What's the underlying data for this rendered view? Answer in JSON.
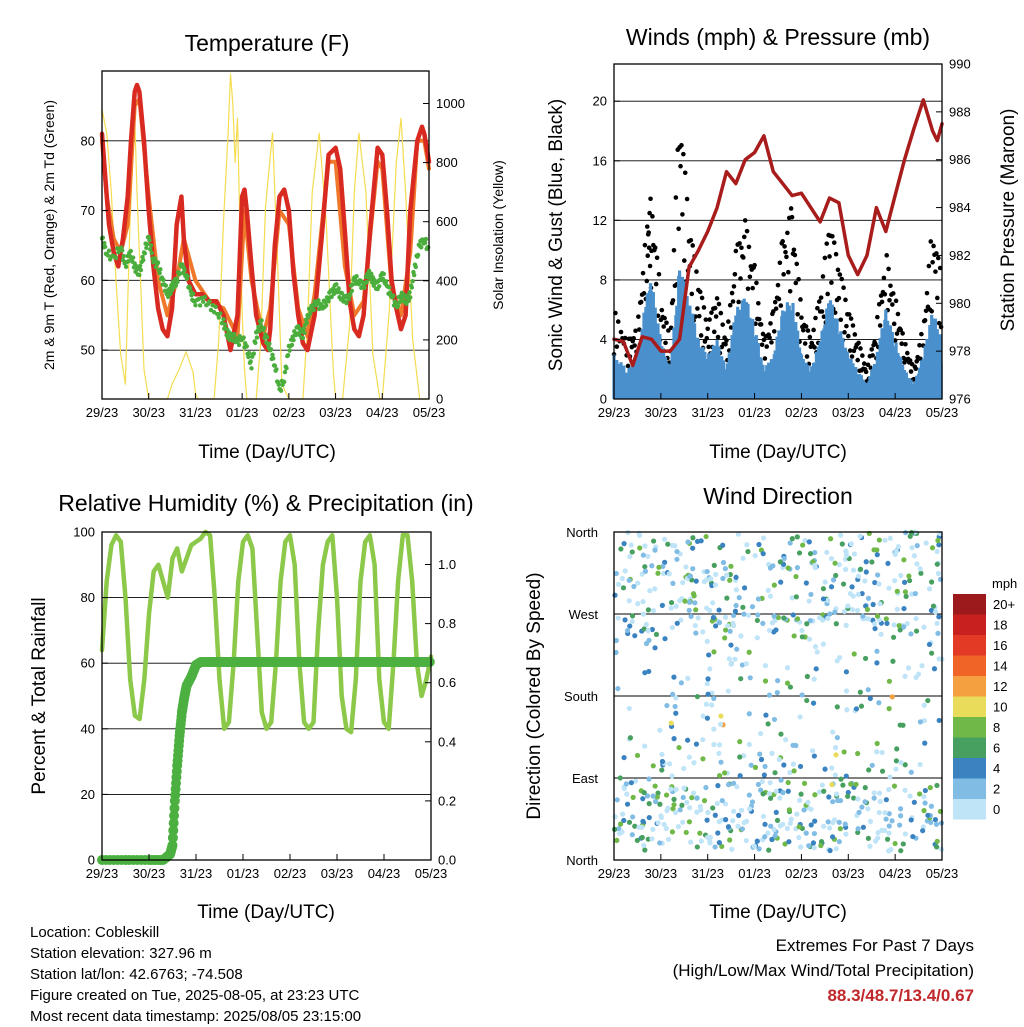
{
  "colors": {
    "temp_2m": "#d92a22",
    "temp_9m": "#f0782a",
    "dewpoint": "#4aad3c",
    "solar": "#f5dc50",
    "wind_sonic": "#4a90cc",
    "wind_gust": "#000000",
    "pressure": "#a81c1c",
    "rh": "#8cc84a",
    "precip": "#4cb040"
  },
  "chart_data": [
    {
      "type": "line",
      "name": "temperature",
      "title": "Temperature (F)",
      "xlabel": "Time (Day/UTC)",
      "ylabel": "2m & 9m T (Red, Orange) & 2m Td (Green)",
      "ylabel_right": "Solar Insolation (Yellow)",
      "x_ticks": [
        "29/23",
        "30/23",
        "31/23",
        "01/23",
        "02/23",
        "03/23",
        "04/23",
        "05/23"
      ],
      "xlim": [
        0,
        7
      ],
      "ylim": [
        43,
        90
      ],
      "y_ticks": [
        50,
        60,
        70,
        80
      ],
      "ylim_right": [
        0,
        1110
      ],
      "y_ticks_right": [
        0,
        200,
        400,
        600,
        800,
        1000
      ],
      "series": [
        {
          "key": "temp2m",
          "x": [
            0,
            0.08,
            0.15,
            0.25,
            0.35,
            0.45,
            0.55,
            0.62,
            0.7,
            0.75,
            0.8,
            0.9,
            1.0,
            1.1,
            1.2,
            1.3,
            1.4,
            1.5,
            1.6,
            1.7,
            1.75,
            1.85,
            2.0,
            2.15,
            2.3,
            2.45,
            2.6,
            2.75,
            2.9,
            3.0,
            3.05,
            3.1,
            3.2,
            3.3,
            3.45,
            3.55,
            3.6,
            3.7,
            3.8,
            3.9,
            4.0,
            4.1,
            4.2,
            4.3,
            4.4,
            4.55,
            4.7,
            4.85,
            5.0,
            5.1,
            5.2,
            5.3,
            5.4,
            5.5,
            5.6,
            5.75,
            5.9,
            6.0,
            6.1,
            6.2,
            6.3,
            6.4,
            6.5,
            6.6,
            6.75,
            6.85,
            6.9,
            6.95,
            7.0
          ],
          "y": [
            81,
            74,
            68,
            64,
            62,
            66,
            72,
            80,
            87,
            88,
            87,
            80,
            70,
            62,
            56,
            53,
            52,
            56,
            68,
            72,
            66,
            60,
            58,
            58,
            57,
            57,
            55,
            50,
            55,
            72,
            73,
            70,
            62,
            55,
            51,
            50,
            53,
            65,
            72,
            73,
            70,
            61,
            55,
            51,
            50,
            55,
            66,
            78,
            79,
            76,
            67,
            57,
            53,
            52,
            55,
            68,
            79,
            78,
            70,
            60,
            56,
            53,
            55,
            70,
            80,
            82,
            81,
            79,
            77
          ]
        },
        {
          "key": "temp9m",
          "x": [
            0,
            0.1,
            0.25,
            0.4,
            0.55,
            0.7,
            0.8,
            1.0,
            1.2,
            1.4,
            1.6,
            1.75,
            2.0,
            2.3,
            2.6,
            2.9,
            3.05,
            3.2,
            3.45,
            3.6,
            3.8,
            4.0,
            4.2,
            4.4,
            4.55,
            4.85,
            5.0,
            5.2,
            5.4,
            5.6,
            5.9,
            6.0,
            6.2,
            6.4,
            6.6,
            6.75,
            6.9,
            7.0
          ],
          "y": [
            80,
            72,
            66,
            64,
            68,
            85,
            86,
            72,
            60,
            55,
            60,
            66,
            60,
            57,
            56,
            52,
            70,
            60,
            52,
            56,
            70,
            68,
            56,
            52,
            58,
            77,
            77,
            62,
            55,
            57,
            77,
            76,
            59,
            55,
            64,
            80,
            80,
            76
          ]
        },
        {
          "key": "dewpoint",
          "x": [
            0,
            0.1,
            0.25,
            0.4,
            0.5,
            0.6,
            0.7,
            0.8,
            0.9,
            1.0,
            1.1,
            1.2,
            1.3,
            1.4,
            1.5,
            1.6,
            1.7,
            1.8,
            1.9,
            2.0,
            2.2,
            2.4,
            2.6,
            2.7,
            2.8,
            2.9,
            3.0,
            3.1,
            3.2,
            3.3,
            3.4,
            3.5,
            3.6,
            3.7,
            3.8,
            3.9,
            4.0,
            4.1,
            4.2,
            4.3,
            4.4,
            4.5,
            4.6,
            4.7,
            4.8,
            4.9,
            5.0,
            5.1,
            5.2,
            5.3,
            5.4,
            5.5,
            5.6,
            5.7,
            5.8,
            5.9,
            6.0,
            6.1,
            6.2,
            6.3,
            6.4,
            6.5,
            6.6,
            6.7,
            6.8,
            6.9,
            7.0
          ],
          "y": [
            66,
            64,
            63,
            65,
            62,
            64,
            62,
            61,
            64,
            66,
            63,
            62,
            60,
            58,
            59,
            60,
            62,
            61,
            58,
            57,
            57,
            56,
            54,
            52,
            52,
            51,
            52,
            50,
            48,
            52,
            54,
            52,
            50,
            48,
            44,
            46,
            50,
            52,
            53,
            52,
            55,
            56,
            57,
            56,
            57,
            58,
            59,
            58,
            57,
            58,
            60,
            60,
            59,
            61,
            60,
            59,
            61,
            59,
            58,
            56,
            58,
            57,
            58,
            62,
            65,
            66,
            64
          ]
        },
        {
          "key": "solar",
          "x": [
            0,
            0.1,
            0.2,
            0.3,
            0.4,
            0.5,
            0.6,
            0.7,
            0.75,
            0.9,
            1.0,
            1.4,
            1.5,
            1.65,
            1.8,
            1.95,
            2.0,
            2.05,
            2.1,
            2.15,
            2.2,
            2.4,
            2.5,
            2.6,
            2.7,
            2.75,
            2.8,
            2.85,
            2.9,
            2.95,
            3.0,
            3.05,
            3.1,
            3.2,
            3.3,
            3.4,
            3.5,
            3.65,
            3.75,
            3.85,
            4.0,
            4.15,
            4.3,
            4.4,
            4.5,
            4.65,
            4.8,
            4.95,
            5.0,
            5.15,
            5.3,
            5.4,
            5.5,
            5.65,
            5.8,
            5.95,
            6.0,
            6.15,
            6.3,
            6.4,
            6.5,
            6.65,
            6.8,
            6.95,
            7.0
          ],
          "y": [
            980,
            900,
            700,
            400,
            150,
            50,
            600,
            950,
            700,
            100,
            0,
            0,
            50,
            100,
            160,
            90,
            20,
            0,
            0,
            0,
            0,
            0,
            200,
            600,
            900,
            1100,
            1000,
            800,
            950,
            600,
            300,
            100,
            0,
            0,
            0,
            200,
            650,
            900,
            500,
            50,
            0,
            0,
            0,
            250,
            700,
            900,
            600,
            100,
            0,
            0,
            250,
            700,
            900,
            700,
            150,
            0,
            0,
            300,
            800,
            950,
            700,
            200,
            0,
            0,
            0
          ]
        }
      ]
    },
    {
      "type": "line",
      "name": "winds",
      "title": "Winds (mph) & Pressure (mb)",
      "xlabel": "Time (Day/UTC)",
      "ylabel": "Sonic Wind & Gust (Blue, Black)",
      "ylabel_right": "Station Pressure (Maroon)",
      "x_ticks": [
        "29/23",
        "30/23",
        "31/23",
        "01/23",
        "02/23",
        "03/23",
        "04/23",
        "05/23"
      ],
      "xlim": [
        0,
        7
      ],
      "ylim": [
        0,
        22.5
      ],
      "y_ticks": [
        0,
        4,
        8,
        12,
        16,
        20
      ],
      "ylim_right": [
        976,
        990
      ],
      "y_ticks_right": [
        976,
        978,
        980,
        982,
        984,
        986,
        988,
        990
      ],
      "series": [
        {
          "key": "sonic",
          "x": [
            0,
            0.3,
            0.5,
            0.7,
            0.8,
            1.0,
            1.2,
            1.4,
            1.6,
            1.8,
            2.0,
            2.2,
            2.4,
            2.6,
            2.8,
            3.0,
            3.2,
            3.4,
            3.6,
            3.8,
            4.0,
            4.2,
            4.4,
            4.6,
            4.8,
            5.0,
            5.2,
            5.4,
            5.6,
            5.8,
            6.0,
            6.2,
            6.4,
            6.6,
            6.8,
            7.0
          ],
          "y": [
            3,
            2,
            3,
            7,
            8,
            4,
            2,
            9,
            7,
            4,
            3,
            4,
            2,
            6,
            7,
            5,
            2,
            3,
            6,
            7,
            3,
            2,
            4,
            7,
            5,
            3,
            2,
            1,
            3,
            6,
            4,
            2,
            1,
            3,
            6,
            4
          ]
        },
        {
          "key": "gust",
          "x": [
            0,
            0.3,
            0.5,
            0.7,
            0.8,
            1.0,
            1.2,
            1.4,
            1.6,
            1.8,
            2.0,
            2.2,
            2.4,
            2.6,
            2.8,
            3.0,
            3.2,
            3.4,
            3.6,
            3.8,
            4.0,
            4.2,
            4.4,
            4.6,
            4.8,
            5.0,
            5.2,
            5.4,
            5.6,
            5.8,
            6.0,
            6.2,
            6.4,
            6.6,
            6.8,
            7.0
          ],
          "y": [
            6,
            4,
            5,
            12,
            14,
            7,
            4,
            20,
            12,
            8,
            5,
            7,
            4,
            10,
            12,
            9,
            4,
            6,
            11,
            13,
            6,
            4,
            7,
            12,
            9,
            6,
            4,
            2,
            5,
            10,
            7,
            4,
            2,
            5,
            12,
            8
          ]
        },
        {
          "key": "pressure",
          "x": [
            0,
            0.2,
            0.4,
            0.6,
            0.8,
            1.0,
            1.2,
            1.4,
            1.6,
            1.8,
            2.0,
            2.2,
            2.4,
            2.6,
            2.8,
            3.0,
            3.2,
            3.4,
            3.6,
            3.8,
            4.0,
            4.2,
            4.4,
            4.6,
            4.8,
            5.0,
            5.2,
            5.4,
            5.6,
            5.8,
            6.0,
            6.2,
            6.4,
            6.6,
            6.8,
            6.9,
            7.0
          ],
          "y": [
            978.5,
            978.4,
            977.4,
            978.6,
            978.5,
            978.0,
            978.0,
            978.5,
            981.5,
            982.2,
            983.0,
            984.0,
            985.5,
            985.0,
            986.0,
            986.3,
            987.0,
            985.5,
            985.0,
            984.5,
            984.6,
            984.0,
            983.4,
            984.4,
            984.2,
            982.0,
            981.2,
            982.0,
            984.0,
            983.0,
            984.5,
            986.0,
            987.3,
            988.5,
            987.2,
            986.8,
            987.5
          ]
        }
      ]
    },
    {
      "type": "line",
      "name": "humidity",
      "title": "Relative Humidity (%) & Precipitation (in)",
      "xlabel": "Time (Day/UTC)",
      "ylabel": "Percent & Total Rainfall",
      "x_ticks": [
        "29/23",
        "30/23",
        "31/23",
        "01/23",
        "02/23",
        "03/23",
        "04/23",
        "05/23"
      ],
      "xlim": [
        0,
        7
      ],
      "ylim": [
        0,
        100
      ],
      "y_ticks": [
        0,
        20,
        40,
        60,
        80,
        100
      ],
      "ylim_right": [
        0,
        1.11
      ],
      "y_ticks_right": [
        "0.0",
        "0.2",
        "0.4",
        "0.6",
        "0.8",
        "1.0"
      ],
      "y_ticks_right_values": [
        0,
        0.2,
        0.4,
        0.6,
        0.8,
        1.0
      ],
      "series": [
        {
          "key": "rh",
          "x": [
            0,
            0.1,
            0.2,
            0.3,
            0.4,
            0.5,
            0.6,
            0.7,
            0.8,
            0.9,
            1.0,
            1.1,
            1.2,
            1.3,
            1.4,
            1.5,
            1.6,
            1.7,
            1.8,
            1.9,
            2.0,
            2.1,
            2.2,
            2.3,
            2.4,
            2.5,
            2.6,
            2.7,
            2.8,
            2.9,
            3.0,
            3.1,
            3.2,
            3.3,
            3.4,
            3.5,
            3.6,
            3.7,
            3.8,
            3.9,
            4.0,
            4.1,
            4.2,
            4.3,
            4.4,
            4.5,
            4.6,
            4.7,
            4.8,
            4.9,
            5.0,
            5.1,
            5.2,
            5.3,
            5.4,
            5.5,
            5.6,
            5.7,
            5.8,
            5.9,
            6.0,
            6.1,
            6.2,
            6.3,
            6.4,
            6.5,
            6.6,
            6.7,
            6.8,
            6.9,
            7.0
          ],
          "y": [
            64,
            85,
            96,
            99,
            97,
            80,
            55,
            44,
            43,
            55,
            75,
            88,
            90,
            85,
            80,
            92,
            95,
            88,
            92,
            96,
            97,
            98,
            100,
            99,
            80,
            55,
            40,
            42,
            60,
            85,
            97,
            99,
            95,
            70,
            45,
            40,
            42,
            60,
            85,
            97,
            99,
            90,
            60,
            42,
            40,
            42,
            70,
            90,
            97,
            99,
            80,
            50,
            40,
            39,
            55,
            85,
            97,
            99,
            90,
            55,
            42,
            40,
            60,
            85,
            99,
            99,
            85,
            60,
            50,
            55,
            62
          ]
        },
        {
          "key": "precip",
          "x": [
            0,
            0.5,
            1.0,
            1.3,
            1.45,
            1.5,
            1.55,
            1.6,
            1.65,
            1.7,
            1.75,
            1.8,
            1.9,
            2.0,
            2.1,
            2.3,
            3.0,
            4.0,
            5.0,
            6.0,
            7.0
          ],
          "y": [
            0,
            0,
            0,
            0,
            0.02,
            0.05,
            0.2,
            0.32,
            0.42,
            0.5,
            0.55,
            0.59,
            0.62,
            0.66,
            0.67,
            0.67,
            0.67,
            0.67,
            0.67,
            0.67,
            0.67
          ]
        }
      ]
    },
    {
      "type": "scatter",
      "name": "wind-direction",
      "title": "Wind Direction",
      "xlabel": "Time (Day/UTC)",
      "ylabel": "Direction (Colored By Speed)",
      "x_ticks": [
        "29/23",
        "30/23",
        "31/23",
        "01/23",
        "02/23",
        "03/23",
        "04/23",
        "05/23"
      ],
      "xlim": [
        0,
        7
      ],
      "y_ticks": [
        "North",
        "West",
        "South",
        "East",
        "North"
      ],
      "ylim": [
        0,
        360
      ],
      "legend": {
        "title": "mph",
        "labels": [
          "20+",
          "18",
          "16",
          "14",
          "12",
          "10",
          "8",
          "6",
          "4",
          "2",
          "0"
        ],
        "colors": [
          "#9c1a1c",
          "#c8201e",
          "#e23a24",
          "#f06428",
          "#f5a040",
          "#e8dc5a",
          "#70b848",
          "#48a060",
          "#3a82c0",
          "#80bce4",
          "#bfe4f8"
        ]
      }
    }
  ],
  "info": {
    "location": "Location: Cobleskill",
    "elevation": "Station elevation: 327.96 m",
    "latlon": "Station lat/lon: 42.6763; -74.508",
    "created": "Figure created on Tue, 2025-08-05, at 23:23 UTC",
    "recent": "Most recent data timestamp: 2025/08/05 23:15:00"
  },
  "extremes": {
    "title": "Extremes For Past 7 Days",
    "subtitle": "(High/Low/Max Wind/Total Precipitation)",
    "values": "88.3/48.7/13.4/0.67"
  }
}
